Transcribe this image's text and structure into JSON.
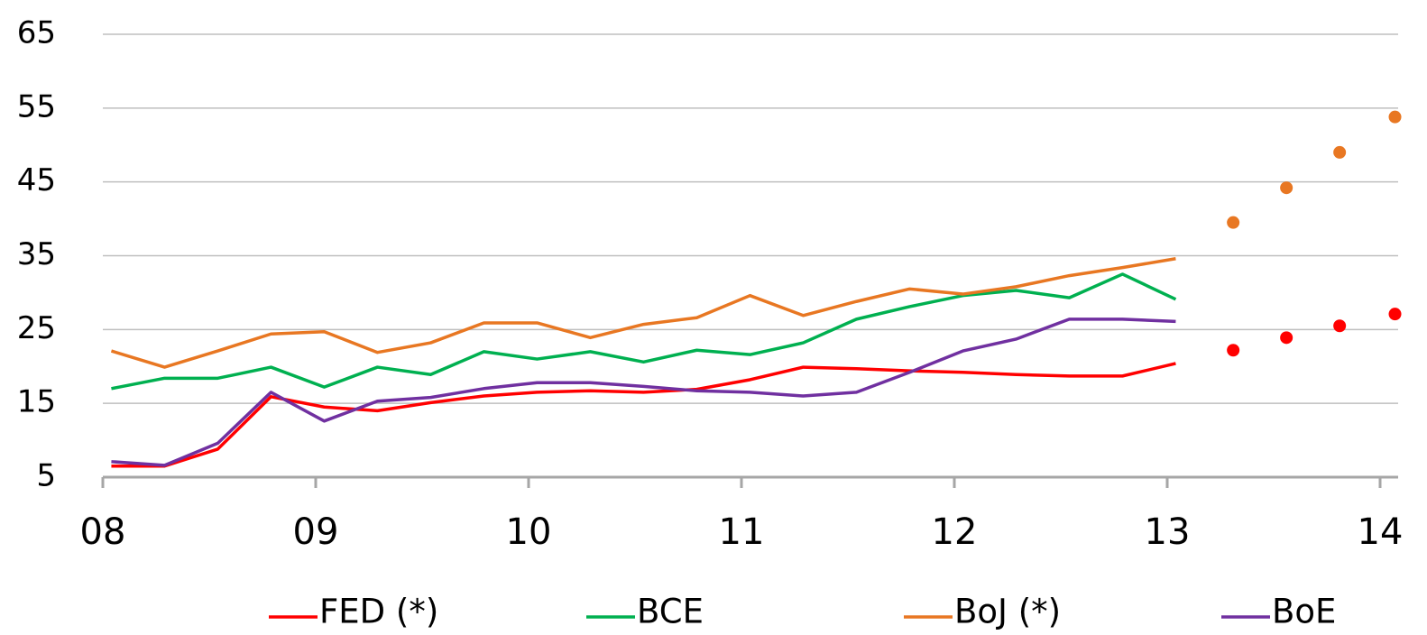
{
  "chart_data": {
    "type": "line",
    "x": [
      8.04,
      8.29,
      8.54,
      8.79,
      9.04,
      9.29,
      9.54,
      9.79,
      10.04,
      10.29,
      10.54,
      10.79,
      11.04,
      11.29,
      11.54,
      11.79,
      12.04,
      12.29,
      12.54,
      12.79,
      13.04
    ],
    "series": [
      {
        "name": "FED (*)",
        "color": "#ff0000",
        "values": [
          6.5,
          6.5,
          8.8,
          15.9,
          14.5,
          14,
          15.1,
          16,
          16.5,
          16.7,
          16.5,
          16.9,
          18.2,
          19.9,
          19.7,
          19.4,
          19.2,
          18.9,
          18.7,
          18.7,
          20.4
        ],
        "forecast": {
          "x": [
            13.31,
            13.56,
            13.81,
            14.07
          ],
          "values": [
            22.2,
            23.9,
            25.5,
            27.1
          ]
        }
      },
      {
        "name": "BCE",
        "color": "#00b050",
        "values": [
          17,
          18.4,
          18.4,
          19.9,
          17.2,
          19.9,
          18.9,
          22,
          21,
          22,
          20.6,
          22.2,
          21.6,
          23.2,
          26.4,
          28.1,
          29.6,
          30.3,
          29.3,
          32.5,
          29.1
        ]
      },
      {
        "name": "BoJ (*)",
        "color": "#e87722",
        "values": [
          22.1,
          19.9,
          22.1,
          24.4,
          24.7,
          21.9,
          23.2,
          25.9,
          25.9,
          23.9,
          25.7,
          26.6,
          29.6,
          26.9,
          28.8,
          30.5,
          29.8,
          30.8,
          32.3,
          33.4,
          34.6
        ],
        "forecast": {
          "x": [
            13.31,
            13.56,
            13.81,
            14.07
          ],
          "values": [
            39.5,
            44.2,
            49,
            53.8
          ]
        }
      },
      {
        "name": "BoE",
        "color": "#7030a0",
        "values": [
          7.1,
          6.6,
          9.6,
          16.5,
          12.6,
          15.3,
          15.8,
          17,
          17.8,
          17.8,
          17.3,
          16.7,
          16.5,
          16,
          16.5,
          19.2,
          22.1,
          23.7,
          26.4,
          26.4,
          26.1
        ]
      }
    ],
    "xlim": [
      8,
      14
    ],
    "xticks": [
      {
        "value": 8,
        "label": "08"
      },
      {
        "value": 9,
        "label": "09"
      },
      10,
      11,
      12,
      13,
      14
    ],
    "ylim": [
      5,
      65
    ],
    "yticks": [
      5,
      15,
      25,
      35,
      45,
      55,
      65
    ],
    "grid": true
  }
}
